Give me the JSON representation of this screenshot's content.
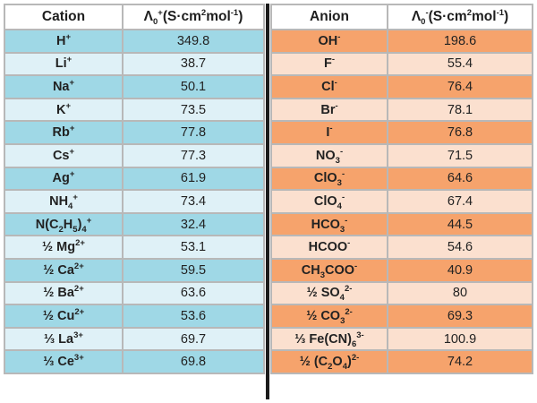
{
  "colors": {
    "cation_dark": "#9fd8e6",
    "cation_light": "#dff1f7",
    "anion_dark": "#f6a36c",
    "anion_light": "#fbe0cf",
    "border": "#b8b8b8",
    "divider": "#1b1b1b"
  },
  "cation_table": {
    "headers": {
      "ion": "Cation",
      "cond_base": "Λ",
      "cond_sub": "0",
      "cond_sup": "+",
      "cond_units": "(S·cm",
      "cond_pow": "2",
      "cond_tail": "mol",
      "cond_tailpow": "-1",
      "cond_close": ")"
    },
    "rows": [
      {
        "base": "H",
        "sup": "+",
        "value": "349.8"
      },
      {
        "base": "Li",
        "sup": "+",
        "value": "38.7"
      },
      {
        "base": "Na",
        "sup": "+",
        "value": "50.1"
      },
      {
        "base": "K",
        "sup": "+",
        "value": "73.5"
      },
      {
        "base": "Rb",
        "sup": "+",
        "value": "77.8"
      },
      {
        "base": "Cs",
        "sup": "+",
        "value": "77.3"
      },
      {
        "base": "Ag",
        "sup": "+",
        "value": "61.9"
      },
      {
        "base": "NH",
        "sub": "4",
        "sup": "+",
        "value": "73.4"
      },
      {
        "base": "N(C",
        "sub1": "2",
        "mid": "H",
        "sub2": "5",
        "end": ")",
        "sub3": "4",
        "sup": "+",
        "value": "32.4"
      },
      {
        "prefix": "½ ",
        "base": "Mg",
        "sup": "2+",
        "value": "53.1"
      },
      {
        "prefix": "½ ",
        "base": "Ca",
        "sup": "2+",
        "value": "59.5"
      },
      {
        "prefix": "½ ",
        "base": "Ba",
        "sup": "2+",
        "value": "63.6"
      },
      {
        "prefix": "½ ",
        "base": "Cu",
        "sup": "2+",
        "value": "53.6"
      },
      {
        "prefix": "⅓ ",
        "base": "La",
        "sup": "3+",
        "value": "69.7"
      },
      {
        "prefix": "⅓ ",
        "base": "Ce",
        "sup": "3+",
        "value": "69.8"
      }
    ]
  },
  "anion_table": {
    "headers": {
      "ion": "Anion",
      "cond_base": "Λ",
      "cond_sub": "0",
      "cond_sup": "-",
      "cond_units": "(S·cm",
      "cond_pow": "2",
      "cond_tail": "mol",
      "cond_tailpow": "-1",
      "cond_close": ")"
    },
    "rows": [
      {
        "base": "OH",
        "sup": "-",
        "value": "198.6"
      },
      {
        "base": "F",
        "sup": "-",
        "value": "55.4"
      },
      {
        "base": "Cl",
        "sup": "-",
        "value": "76.4"
      },
      {
        "base": "Br",
        "sup": "-",
        "value": "78.1"
      },
      {
        "base": "I",
        "sup": "-",
        "value": "76.8"
      },
      {
        "base": "NO",
        "sub": "3",
        "sup": "-",
        "value": "71.5"
      },
      {
        "base": "ClO",
        "sub": "3",
        "sup": "-",
        "value": "64.6"
      },
      {
        "base": "ClO",
        "sub": "4",
        "sup": "-",
        "value": "67.4"
      },
      {
        "base": "HCO",
        "sub": "3",
        "sup": "-",
        "value": "44.5"
      },
      {
        "base": "HCOO",
        "sup": "-",
        "value": "54.6"
      },
      {
        "base": "CH",
        "sub": "3",
        "end": "COO",
        "sup": "-",
        "value": "40.9"
      },
      {
        "prefix": "½ ",
        "base": "SO",
        "sub": "4",
        "sup": "2-",
        "value": "80"
      },
      {
        "prefix": "½ ",
        "base": "CO",
        "sub": "3",
        "sup": "2-",
        "value": "69.3"
      },
      {
        "prefix": "⅓ ",
        "base": "Fe(CN)",
        "sub": "6",
        "sup": "3-",
        "value": "100.9"
      },
      {
        "prefix": "½ ",
        "base": "(C",
        "sub1": "2",
        "mid": "O",
        "sub2": "4",
        "end": ")",
        "sup": "2-",
        "value": "74.2"
      }
    ]
  }
}
